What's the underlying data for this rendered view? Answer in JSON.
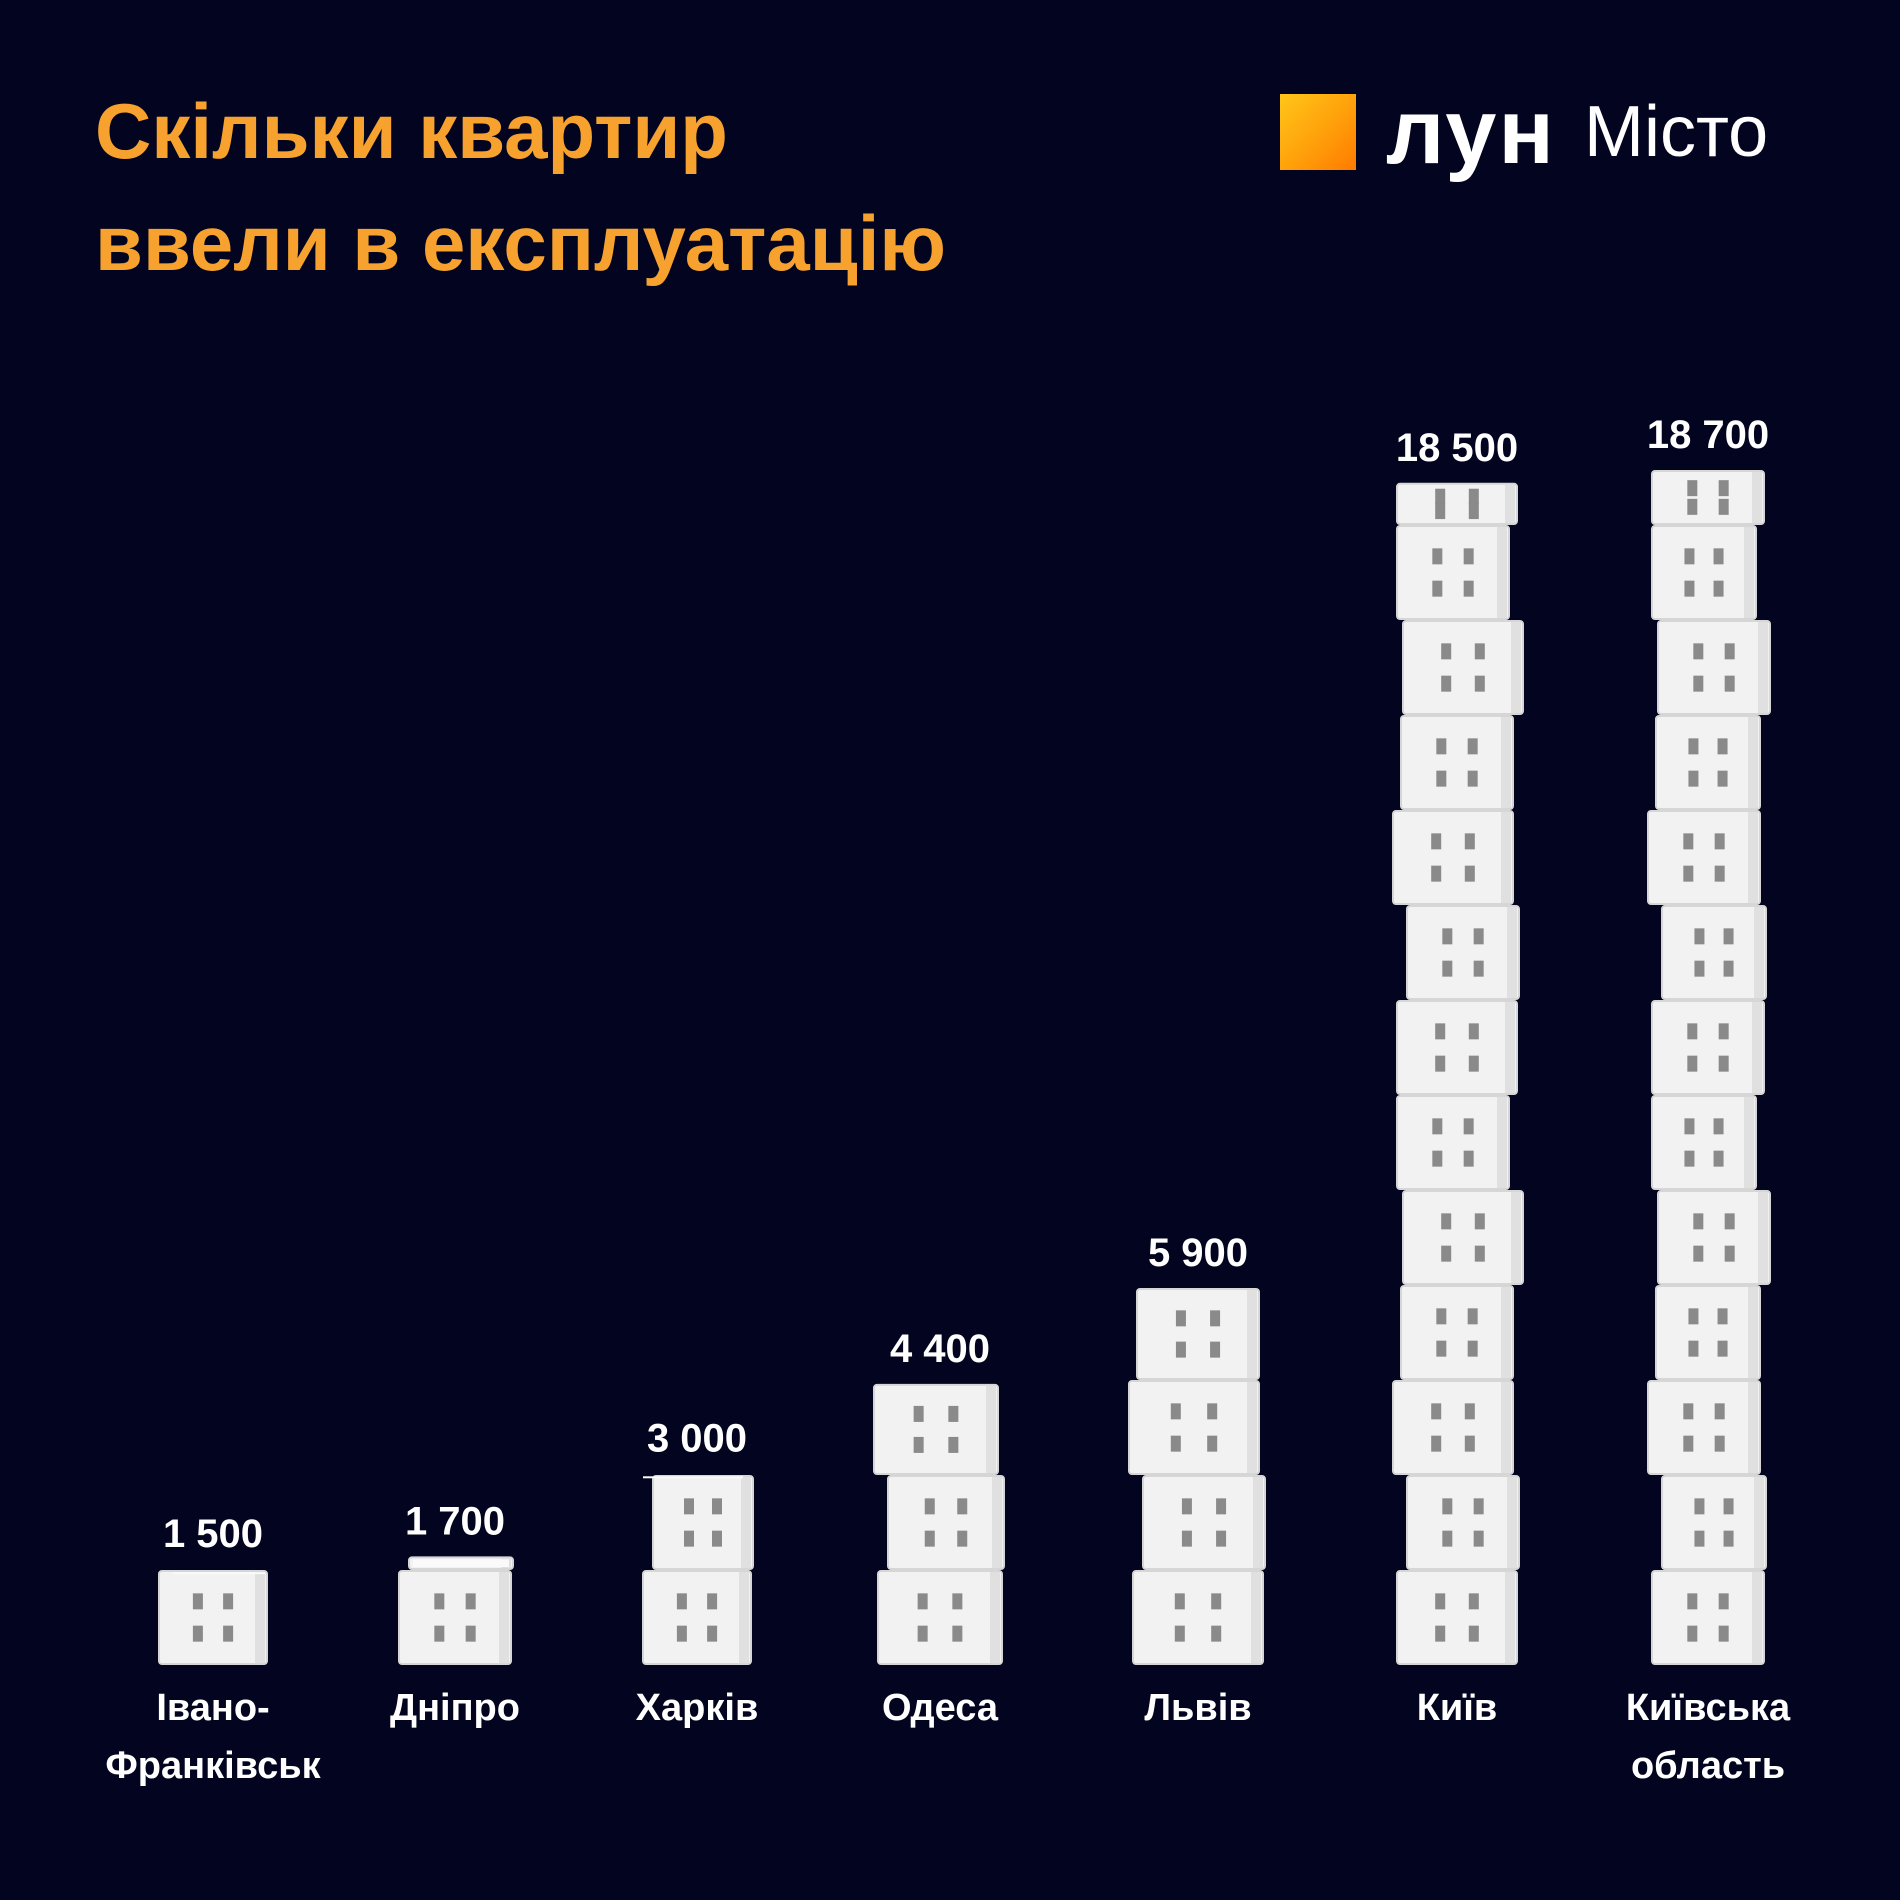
{
  "title_lines": [
    "Скільки квартир",
    "ввели в експлуатацію"
  ],
  "logo": {
    "brand": "лун",
    "sub": "Місто",
    "icon": "orange-square-icon"
  },
  "colors": {
    "background": "#030520",
    "title": "#F7A22E",
    "block": "#F2F2F2",
    "window": "#8A8A8A",
    "text": "#FFFFFF"
  },
  "chart_data": {
    "type": "bar",
    "title": "Скільки квартир ввели в експлуатацію",
    "categories": [
      [
        "Івано-",
        "Франківськ"
      ],
      [
        "Дніпро"
      ],
      [
        "Харків"
      ],
      [
        "Одеса"
      ],
      [
        "Львів"
      ],
      [
        "Київ"
      ],
      [
        "Київська",
        "область"
      ]
    ],
    "values": [
      1500,
      1700,
      3000,
      4400,
      5900,
      18500,
      18700
    ],
    "value_labels": [
      "1 500",
      "1 700",
      "3 000",
      "4 400",
      "5 900",
      "18 500",
      "18 700"
    ],
    "ylim": [
      0,
      18700
    ],
    "grid": false,
    "legend": "none"
  }
}
